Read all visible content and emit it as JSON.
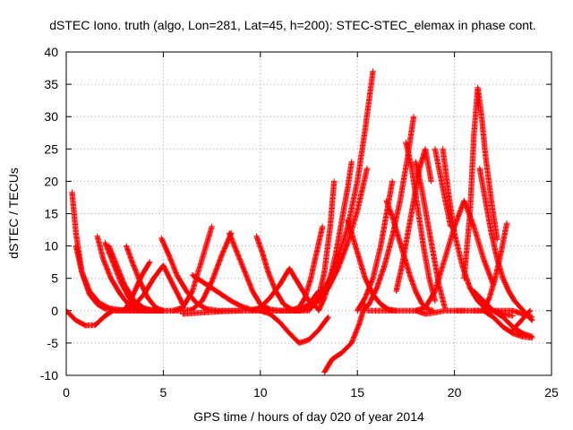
{
  "chart_data": {
    "type": "scatter",
    "title": "dSTEC Iono. truth (algo, Lon=281, Lat=45, h=200): STEC-STEC_elemax in phase cont.",
    "xlabel": "GPS time / hours of day 020 of year 2014",
    "ylabel": "dSTEC  / TECUs",
    "xlim": [
      0,
      25
    ],
    "ylim": [
      -10,
      40
    ],
    "xticks": [
      0,
      5,
      10,
      15,
      20,
      25
    ],
    "yticks": [
      -10,
      -5,
      0,
      5,
      10,
      15,
      20,
      25,
      30,
      35,
      40
    ],
    "grid": true,
    "marker": "plus",
    "color": "#ff0000",
    "series": [
      {
        "x": [
          0.0,
          0.5,
          1.0,
          1.5,
          2.0,
          2.4
        ],
        "y": [
          0.0,
          -1.5,
          -2.3,
          -2.2,
          -0.8,
          0.0
        ]
      },
      {
        "x": [
          0.3,
          0.5,
          0.8,
          1.2,
          1.6,
          2.0,
          2.5,
          3.0,
          3.5,
          4.0
        ],
        "y": [
          18.3,
          12.0,
          6.0,
          2.5,
          1.0,
          0.3,
          0.0,
          0.0,
          0.0,
          0.0
        ]
      },
      {
        "x": [
          0.5,
          0.8,
          1.2,
          1.7,
          2.2,
          2.8,
          3.3,
          3.8,
          4.5,
          5.0
        ],
        "y": [
          10.0,
          6.0,
          3.0,
          1.2,
          0.4,
          0.1,
          0.0,
          0.0,
          0.0,
          0.0
        ]
      },
      {
        "x": [
          1.6,
          1.9,
          2.3,
          2.8,
          3.2,
          3.6,
          4.1,
          4.6,
          5.0
        ],
        "y": [
          11.5,
          8.0,
          5.0,
          2.5,
          1.0,
          0.3,
          0.0,
          0.0,
          0.0
        ]
      },
      {
        "x": [
          2.0,
          2.4,
          2.8,
          3.2,
          3.6,
          4.0,
          4.5,
          5.0
        ],
        "y": [
          10.5,
          7.5,
          4.5,
          2.2,
          0.8,
          0.2,
          0.0,
          0.0
        ]
      },
      {
        "x": [
          2.2,
          2.6,
          3.0,
          3.5,
          4.0,
          4.5,
          5.0
        ],
        "y": [
          10.0,
          7.0,
          4.0,
          1.5,
          0.4,
          0.0,
          0.0
        ]
      },
      {
        "x": [
          3.1,
          3.4,
          3.8,
          4.2,
          4.6,
          5.0
        ],
        "y": [
          10.0,
          7.5,
          4.5,
          2.0,
          0.5,
          0.0
        ]
      },
      {
        "x": [
          2.5,
          3.0,
          3.5,
          4.0,
          4.5,
          5.0,
          5.5,
          6.0
        ],
        "y": [
          0.0,
          0.1,
          0.8,
          2.5,
          5.0,
          7.0,
          4.0,
          1.0
        ]
      },
      {
        "x": [
          3.0,
          3.3,
          3.6,
          3.9,
          4.3
        ],
        "y": [
          0.0,
          1.5,
          3.5,
          5.5,
          7.5
        ]
      },
      {
        "x": [
          4.9,
          5.3,
          5.7,
          6.2,
          6.7,
          7.2,
          7.8,
          8.5,
          9.0
        ],
        "y": [
          11.2,
          8.5,
          5.5,
          3.0,
          1.2,
          0.3,
          0.0,
          0.0,
          0.0
        ]
      },
      {
        "x": [
          4.5,
          5.0,
          5.5,
          6.0,
          6.5,
          7.0,
          7.5
        ],
        "y": [
          0.0,
          0.0,
          0.0,
          0.5,
          3.0,
          8.0,
          13.0
        ]
      },
      {
        "x": [
          5.5,
          6.0,
          6.5,
          7.0,
          7.5,
          8.0,
          8.5
        ],
        "y": [
          0.0,
          0.0,
          0.2,
          1.5,
          4.5,
          8.5,
          12.0
        ]
      },
      {
        "x": [
          6.5,
          7.0,
          7.5,
          8.0,
          8.5,
          9.0,
          9.5,
          10.0
        ],
        "y": [
          5.5,
          4.5,
          3.5,
          2.5,
          1.5,
          0.7,
          0.2,
          0.0
        ]
      },
      {
        "x": [
          6.0,
          7.0,
          8.0,
          9.0,
          10.0,
          11.0,
          12.0
        ],
        "y": [
          -0.5,
          -0.3,
          -0.1,
          0.0,
          0.0,
          0.0,
          0.0
        ]
      },
      {
        "x": [
          8.4,
          8.8,
          9.2,
          9.6,
          10.0,
          10.5,
          11.0
        ],
        "y": [
          12.0,
          9.0,
          6.0,
          3.0,
          1.0,
          0.2,
          0.0
        ]
      },
      {
        "x": [
          9.8,
          10.1,
          10.4,
          10.8,
          11.2,
          11.6,
          12.0,
          12.5
        ],
        "y": [
          11.5,
          9.0,
          6.0,
          3.0,
          1.0,
          0.2,
          0.0,
          0.0
        ]
      },
      {
        "x": [
          9.5,
          10.0,
          10.5,
          11.0,
          11.5,
          12.0,
          12.5,
          13.0
        ],
        "y": [
          0.0,
          0.5,
          2.0,
          4.0,
          6.5,
          4.0,
          1.5,
          0.2
        ]
      },
      {
        "x": [
          10.0,
          10.5,
          11.0,
          11.5,
          12.0,
          12.5,
          13.0,
          13.5
        ],
        "y": [
          0.0,
          -0.5,
          -1.8,
          -3.5,
          -5.0,
          -4.5,
          -3.0,
          -1.0
        ]
      },
      {
        "x": [
          11.0,
          11.5,
          12.0,
          12.5,
          13.0
        ],
        "y": [
          0.0,
          0.0,
          0.0,
          1.0,
          3.0
        ]
      },
      {
        "x": [
          11.5,
          12.0,
          12.3,
          12.6,
          12.9,
          13.2
        ],
        "y": [
          0.0,
          0.5,
          2.0,
          5.0,
          9.0,
          13.0
        ]
      },
      {
        "x": [
          11.0,
          11.5,
          12.0,
          12.5,
          13.0,
          13.5,
          14.0,
          14.5,
          15.0,
          15.5
        ],
        "y": [
          0.0,
          0.0,
          0.0,
          0.5,
          1.5,
          3.5,
          6.5,
          10.5,
          15.5,
          22.0
        ]
      },
      {
        "x": [
          12.0,
          12.5,
          13.0,
          13.5,
          14.0,
          14.5,
          15.0,
          15.4,
          15.8
        ],
        "y": [
          0.0,
          0.5,
          2.0,
          4.5,
          8.0,
          13.0,
          20.0,
          28.0,
          37.0
        ]
      },
      {
        "x": [
          12.5,
          13.0,
          13.3,
          13.6,
          13.8
        ],
        "y": [
          0.0,
          2.0,
          6.0,
          13.0,
          20.0
        ]
      },
      {
        "x": [
          13.0,
          13.3,
          13.6,
          13.9,
          14.2,
          14.5,
          14.7
        ],
        "y": [
          0.0,
          2.0,
          5.0,
          9.0,
          14.0,
          19.0,
          23.0
        ]
      },
      {
        "x": [
          13.3,
          13.7,
          14.2,
          14.7,
          15.1,
          15.4
        ],
        "y": [
          -9.5,
          -7.5,
          -6.5,
          -5.0,
          -2.0,
          1.0
        ]
      },
      {
        "x": [
          14.5,
          14.8,
          15.1,
          15.4,
          15.8,
          16.2,
          16.6,
          17.0
        ],
        "y": [
          14.0,
          11.0,
          8.0,
          5.0,
          2.5,
          1.0,
          0.2,
          0.0
        ]
      },
      {
        "x": [
          15.3,
          15.6,
          16.0,
          16.4,
          16.8,
          17.2,
          17.6,
          17.9
        ],
        "y": [
          0.0,
          1.0,
          3.5,
          7.0,
          11.5,
          17.0,
          24.0,
          30.0
        ]
      },
      {
        "x": [
          15.0,
          15.4,
          15.8,
          16.2,
          16.5,
          16.8
        ],
        "y": [
          0.0,
          2.0,
          5.0,
          10.0,
          15.0,
          20.0
        ]
      },
      {
        "x": [
          15.5,
          16.0,
          16.5,
          17.0,
          17.5,
          18.0,
          18.5,
          19.0,
          19.5,
          20.0,
          20.5
        ],
        "y": [
          0.0,
          0.0,
          0.0,
          0.0,
          0.0,
          0.0,
          -0.5,
          -0.3,
          0.0,
          0.0,
          0.0
        ]
      },
      {
        "x": [
          16.5,
          16.8,
          17.1,
          17.4,
          17.7,
          18.0,
          18.3,
          18.6,
          18.9
        ],
        "y": [
          17.0,
          14.5,
          11.5,
          8.5,
          5.5,
          3.0,
          1.2,
          0.3,
          0.0
        ]
      },
      {
        "x": [
          17.0,
          17.3,
          17.6,
          17.9,
          18.2,
          18.5,
          18.8
        ],
        "y": [
          3.0,
          7.0,
          12.0,
          17.0,
          22.0,
          25.0,
          20.0
        ]
      },
      {
        "x": [
          17.5,
          17.8,
          18.1,
          18.4,
          18.7,
          19.0
        ],
        "y": [
          26.0,
          22.0,
          16.0,
          10.0,
          5.0,
          1.5
        ]
      },
      {
        "x": [
          18.0,
          18.3,
          18.6,
          18.9,
          19.2,
          19.5
        ],
        "y": [
          23.0,
          19.0,
          14.0,
          9.0,
          4.0,
          0.5
        ]
      },
      {
        "x": [
          18.0,
          18.5,
          19.0,
          19.5,
          20.0,
          20.5,
          21.0,
          21.5,
          22.0
        ],
        "y": [
          0.0,
          0.5,
          3.0,
          8.0,
          13.0,
          17.0,
          13.0,
          8.0,
          4.0
        ]
      },
      {
        "x": [
          19.0,
          19.2,
          19.4,
          19.6,
          19.8
        ],
        "y": [
          25.0,
          22.0,
          19.0,
          16.0,
          13.0
        ]
      },
      {
        "x": [
          19.4,
          19.7,
          20.0,
          20.4,
          20.8,
          21.2,
          21.6,
          22.0,
          22.5,
          23.0
        ],
        "y": [
          25.0,
          18.0,
          12.0,
          7.0,
          3.5,
          1.5,
          0.3,
          0.0,
          -0.5,
          -0.8
        ]
      },
      {
        "x": [
          20.0,
          20.5,
          21.0,
          21.5,
          22.0,
          22.5,
          23.0,
          23.5,
          24.0
        ],
        "y": [
          0.0,
          0.0,
          0.0,
          0.0,
          -1.0,
          -2.5,
          -3.5,
          -4.0,
          -4.2
        ]
      },
      {
        "x": [
          20.5,
          20.8,
          21.0,
          21.2,
          21.4,
          21.6,
          21.9,
          22.2
        ],
        "y": [
          5.0,
          15.0,
          27.0,
          34.5,
          30.0,
          24.0,
          17.0,
          11.0
        ]
      },
      {
        "x": [
          21.3,
          21.6,
          21.9,
          22.2,
          22.5,
          22.8,
          23.1,
          23.4,
          23.7,
          24.0
        ],
        "y": [
          22.0,
          17.0,
          12.0,
          8.0,
          5.0,
          3.0,
          1.5,
          0.5,
          -0.5,
          -1.5
        ]
      },
      {
        "x": [
          21.0,
          21.5,
          22.0,
          22.5,
          23.0,
          23.5,
          24.0
        ],
        "y": [
          0.0,
          0.0,
          0.0,
          0.0,
          0.0,
          -0.5,
          -1.0
        ]
      },
      {
        "x": [
          21.5,
          21.8,
          22.1,
          22.4,
          22.7
        ],
        "y": [
          0.0,
          2.0,
          5.0,
          9.0,
          13.5
        ]
      },
      {
        "x": [
          21.0,
          21.5,
          22.0,
          22.5,
          23.0,
          23.5,
          24.0
        ],
        "y": [
          3.0,
          1.5,
          0.0,
          -1.0,
          -2.5,
          -3.5,
          -4.0
        ]
      },
      {
        "x": [
          23.0,
          23.3,
          23.6,
          23.9
        ],
        "y": [
          -3.0,
          -2.0,
          -1.0,
          0.0
        ]
      }
    ]
  }
}
